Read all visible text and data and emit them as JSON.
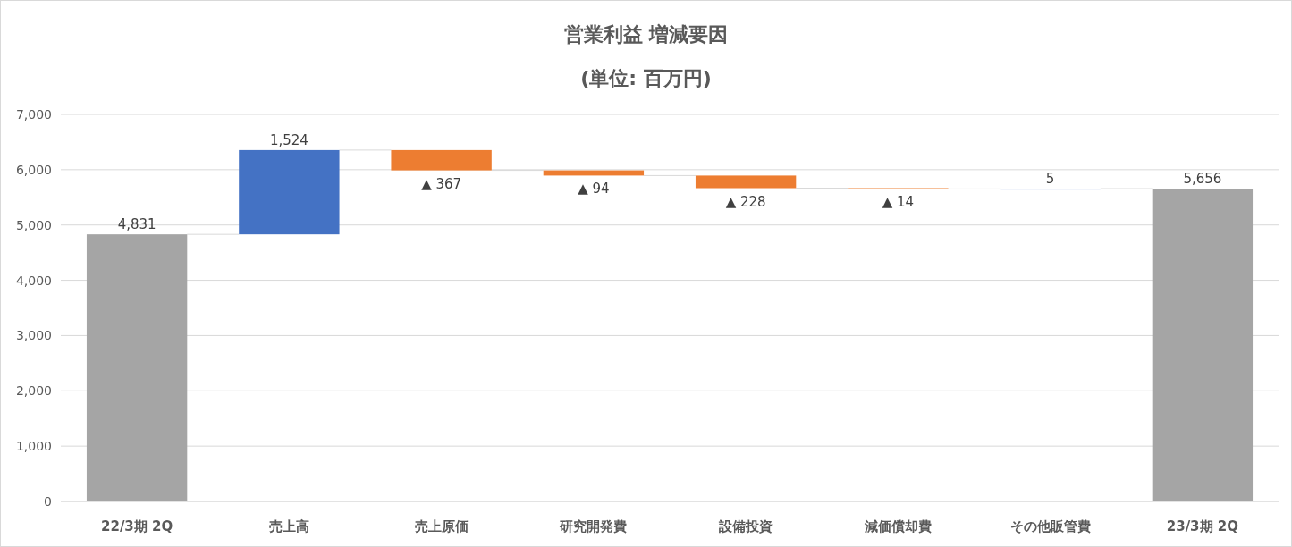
{
  "chart_data": {
    "type": "bar",
    "title": "営業利益 増減要因",
    "subtitle": "(単位: 百万円)",
    "categories": [
      "22/3期 2Q",
      "売上高",
      "売上原価",
      "研究開発費",
      "設備投資",
      "減価償却費",
      "その他販管費",
      "23/3期 2Q"
    ],
    "values": [
      4831,
      1524,
      -367,
      -94,
      -228,
      -14,
      5,
      5656
    ],
    "base": [
      0,
      4831,
      6355,
      5988,
      5894,
      5666,
      5652,
      0
    ],
    "colors": [
      "#a5a5a5",
      "#4472c4",
      "#ed7d31",
      "#ed7d31",
      "#ed7d31",
      "#ed7d31",
      "#4472c4",
      "#a5a5a5"
    ],
    "value_labels": [
      "4,831",
      "1,524",
      "▲ 367",
      "▲ 94",
      "▲ 228",
      "▲ 14",
      "5",
      "5,656"
    ],
    "ylim": [
      0,
      7000
    ],
    "yticks": [
      0,
      {
        "value": 1000,
        "label": "1,000"
      },
      {
        "value": 2000,
        "label": "2,000"
      },
      {
        "value": 3000,
        "label": "3,000"
      },
      {
        "value": 4000,
        "label": "4,000"
      },
      {
        "value": 5000,
        "label": "5,000"
      },
      {
        "value": 6000,
        "label": "6,000"
      },
      {
        "value": 7000,
        "label": "7,000"
      }
    ],
    "grid": "y"
  }
}
